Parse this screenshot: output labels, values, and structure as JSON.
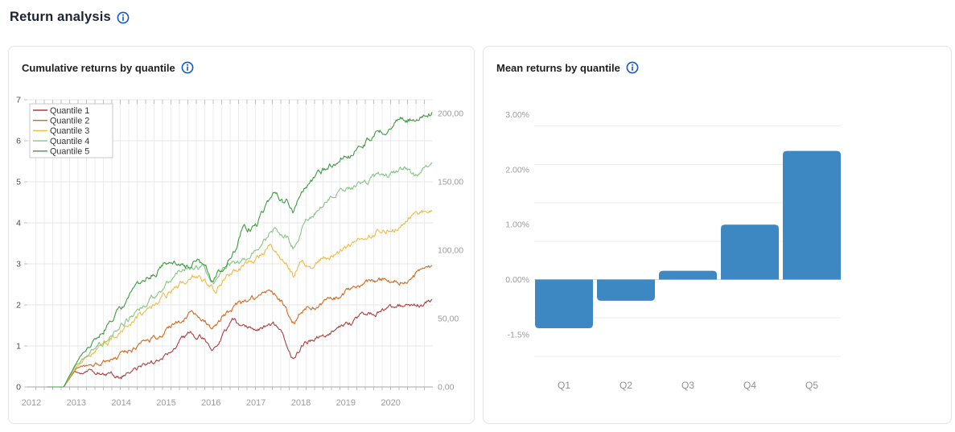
{
  "page": {
    "title": "Return analysis"
  },
  "cards": {
    "left": {
      "title": "Cumulative returns by quantile"
    },
    "right": {
      "title": "Mean returns by quantile"
    }
  },
  "icons": {
    "info": {
      "name": "info-icon",
      "color": "#1554d1"
    }
  },
  "chart_data": [
    {
      "type": "line",
      "title": "Cumulative returns by quantile",
      "x_axis": {
        "tick_labels": [
          "2012",
          "2013",
          "2014",
          "2015",
          "2016",
          "2017",
          "2018",
          "2019",
          "2020"
        ],
        "tick_values": [
          2012,
          2013,
          2014,
          2015,
          2016,
          2017,
          2018,
          2019,
          2020
        ],
        "range": [
          2011.91,
          2020.94
        ],
        "grid": true
      },
      "y_axis_left": {
        "tick_labels": [
          "0",
          "1",
          "2",
          "3",
          "4",
          "5",
          "6",
          "7"
        ],
        "tick_values": [
          0,
          1,
          2,
          3,
          4,
          5,
          6,
          7
        ],
        "range": [
          0,
          7
        ],
        "grid": true
      },
      "y_axis_right": {
        "tick_labels": [
          "0,00",
          "50,00",
          "100,00",
          "150,00",
          "200,00"
        ],
        "tick_values": [
          0,
          50,
          100,
          150,
          200
        ],
        "range": [
          0,
          200
        ]
      },
      "legend": {
        "position": "top-left",
        "entries": [
          "Quantile 1",
          "Quantile 2",
          "Quantile 3",
          "Quantile 4",
          "Quantile 5"
        ]
      },
      "series": [
        {
          "name": "Quantile 1",
          "color": "#ad3e3e",
          "points": [
            [
              2012.35,
              0
            ],
            [
              2012.72,
              0
            ],
            [
              2012.95,
              0.38
            ],
            [
              2013.15,
              0.32
            ],
            [
              2013.3,
              0.42
            ],
            [
              2013.55,
              0.35
            ],
            [
              2013.8,
              0.33
            ],
            [
              2014.0,
              0.26
            ],
            [
              2014.2,
              0.42
            ],
            [
              2014.45,
              0.5
            ],
            [
              2014.7,
              0.6
            ],
            [
              2015.0,
              0.8
            ],
            [
              2015.3,
              1.1
            ],
            [
              2015.55,
              1.3
            ],
            [
              2015.75,
              1.22
            ],
            [
              2015.95,
              1.05
            ],
            [
              2016.1,
              0.95
            ],
            [
              2016.3,
              1.35
            ],
            [
              2016.5,
              1.62
            ],
            [
              2016.7,
              1.45
            ],
            [
              2016.95,
              1.45
            ],
            [
              2017.15,
              1.42
            ],
            [
              2017.38,
              1.5
            ],
            [
              2017.6,
              1.25
            ],
            [
              2017.83,
              0.7
            ],
            [
              2018.05,
              1.05
            ],
            [
              2018.3,
              1.2
            ],
            [
              2018.6,
              1.3
            ],
            [
              2018.9,
              1.5
            ],
            [
              2019.1,
              1.56
            ],
            [
              2019.45,
              1.75
            ],
            [
              2019.75,
              1.85
            ],
            [
              2020.0,
              1.95
            ],
            [
              2020.3,
              2.0
            ],
            [
              2020.6,
              2.0
            ],
            [
              2020.93,
              2.12
            ]
          ]
        },
        {
          "name": "Quantile 2",
          "color": "#d2691e",
          "points": [
            [
              2012.35,
              0
            ],
            [
              2012.72,
              0
            ],
            [
              2013.0,
              0.45
            ],
            [
              2013.3,
              0.52
            ],
            [
              2013.6,
              0.6
            ],
            [
              2014.0,
              0.75
            ],
            [
              2014.5,
              1.05
            ],
            [
              2015.0,
              1.4
            ],
            [
              2015.35,
              1.65
            ],
            [
              2015.6,
              1.85
            ],
            [
              2015.8,
              1.75
            ],
            [
              2016.05,
              1.45
            ],
            [
              2016.35,
              1.8
            ],
            [
              2016.6,
              2.0
            ],
            [
              2016.8,
              2.05
            ],
            [
              2017.0,
              2.2
            ],
            [
              2017.35,
              2.32
            ],
            [
              2017.55,
              2.1
            ],
            [
              2017.83,
              1.57
            ],
            [
              2018.1,
              1.9
            ],
            [
              2018.4,
              2.0
            ],
            [
              2018.7,
              2.1
            ],
            [
              2019.0,
              2.3
            ],
            [
              2019.2,
              2.42
            ],
            [
              2019.5,
              2.55
            ],
            [
              2019.9,
              2.62
            ],
            [
              2020.2,
              2.58
            ],
            [
              2020.5,
              2.68
            ],
            [
              2020.75,
              2.9
            ],
            [
              2020.93,
              2.95
            ]
          ]
        },
        {
          "name": "Quantile 3",
          "color": "#eebc45",
          "points": [
            [
              2012.35,
              0
            ],
            [
              2012.72,
              0
            ],
            [
              2013.0,
              0.5
            ],
            [
              2013.5,
              0.9
            ],
            [
              2014.0,
              1.35
            ],
            [
              2014.5,
              1.8
            ],
            [
              2015.0,
              2.25
            ],
            [
              2015.35,
              2.55
            ],
            [
              2015.6,
              2.7
            ],
            [
              2015.85,
              2.6
            ],
            [
              2016.1,
              2.3
            ],
            [
              2016.35,
              2.75
            ],
            [
              2016.6,
              2.9
            ],
            [
              2016.85,
              3.0
            ],
            [
              2017.1,
              3.2
            ],
            [
              2017.3,
              3.37
            ],
            [
              2017.5,
              3.15
            ],
            [
              2017.68,
              3.05
            ],
            [
              2017.83,
              2.68
            ],
            [
              2018.0,
              3.0
            ],
            [
              2018.2,
              2.95
            ],
            [
              2018.4,
              3.05
            ],
            [
              2018.55,
              3.14
            ],
            [
              2018.8,
              3.25
            ],
            [
              2019.0,
              3.4
            ],
            [
              2019.17,
              3.43
            ],
            [
              2019.4,
              3.6
            ],
            [
              2019.7,
              3.8
            ],
            [
              2019.95,
              3.85
            ],
            [
              2020.28,
              3.92
            ],
            [
              2020.5,
              4.1
            ],
            [
              2020.7,
              4.25
            ],
            [
              2020.85,
              4.3
            ],
            [
              2020.93,
              4.35
            ]
          ]
        },
        {
          "name": "Quantile 4",
          "color": "#85c683",
          "points": [
            [
              2012.35,
              0
            ],
            [
              2012.72,
              0
            ],
            [
              2013.0,
              0.55
            ],
            [
              2013.5,
              1.0
            ],
            [
              2014.0,
              1.5
            ],
            [
              2014.5,
              2.0
            ],
            [
              2015.0,
              2.5
            ],
            [
              2015.3,
              2.8
            ],
            [
              2015.55,
              2.9
            ],
            [
              2015.8,
              2.95
            ],
            [
              2016.05,
              2.6
            ],
            [
              2016.35,
              2.95
            ],
            [
              2016.6,
              3.05
            ],
            [
              2016.85,
              3.17
            ],
            [
              2017.1,
              3.45
            ],
            [
              2017.45,
              3.92
            ],
            [
              2017.65,
              3.7
            ],
            [
              2017.83,
              3.37
            ],
            [
              2018.05,
              3.95
            ],
            [
              2018.25,
              4.2
            ],
            [
              2018.5,
              4.5
            ],
            [
              2018.75,
              4.7
            ],
            [
              2019.0,
              4.9
            ],
            [
              2019.1,
              4.8
            ],
            [
              2019.35,
              5.0
            ],
            [
              2019.6,
              5.1
            ],
            [
              2019.85,
              5.15
            ],
            [
              2020.1,
              5.2
            ],
            [
              2020.35,
              5.3
            ],
            [
              2020.55,
              5.16
            ],
            [
              2020.75,
              5.3
            ],
            [
              2020.93,
              5.4
            ]
          ]
        },
        {
          "name": "Quantile 5",
          "color": "#3f9b41",
          "points": [
            [
              2012.35,
              0
            ],
            [
              2012.72,
              0
            ],
            [
              2013.0,
              0.6
            ],
            [
              2013.5,
              1.25
            ],
            [
              2014.0,
              1.9
            ],
            [
              2014.5,
              2.6
            ],
            [
              2015.0,
              3.0
            ],
            [
              2015.32,
              3.1
            ],
            [
              2015.5,
              2.95
            ],
            [
              2015.7,
              3.15
            ],
            [
              2016.03,
              2.6
            ],
            [
              2016.3,
              3.0
            ],
            [
              2016.55,
              3.4
            ],
            [
              2016.7,
              3.86
            ],
            [
              2017.0,
              3.92
            ],
            [
              2017.2,
              4.3
            ],
            [
              2017.45,
              4.74
            ],
            [
              2017.6,
              4.5
            ],
            [
              2017.7,
              4.6
            ],
            [
              2017.83,
              4.25
            ],
            [
              2018.0,
              4.8
            ],
            [
              2018.2,
              5.0
            ],
            [
              2018.5,
              5.29
            ],
            [
              2018.8,
              5.5
            ],
            [
              2019.0,
              5.73
            ],
            [
              2019.1,
              5.63
            ],
            [
              2019.3,
              5.85
            ],
            [
              2019.55,
              6.05
            ],
            [
              2019.75,
              6.2
            ],
            [
              2020.0,
              6.35
            ],
            [
              2020.2,
              6.45
            ],
            [
              2020.4,
              6.55
            ],
            [
              2020.55,
              6.45
            ],
            [
              2020.7,
              6.55
            ],
            [
              2020.93,
              6.72
            ]
          ]
        }
      ]
    },
    {
      "type": "bar",
      "title": "Mean returns by quantile",
      "categories": [
        "Q1",
        "Q2",
        "Q3",
        "Q4",
        "Q5"
      ],
      "values": [
        -1.33,
        -0.58,
        0.16,
        1.0,
        2.34
      ],
      "unit": "%",
      "bar_color": "#3d87c2",
      "y_ticks": [
        {
          "label": "3.00%",
          "value": 3
        },
        {
          "label": "2.00%",
          "value": 2
        },
        {
          "label": "1.00%",
          "value": 1
        },
        {
          "label": "0.00%",
          "value": 0
        },
        {
          "label": "-1.5%",
          "value": -1.5
        }
      ],
      "grid": true,
      "legend": null
    }
  ]
}
